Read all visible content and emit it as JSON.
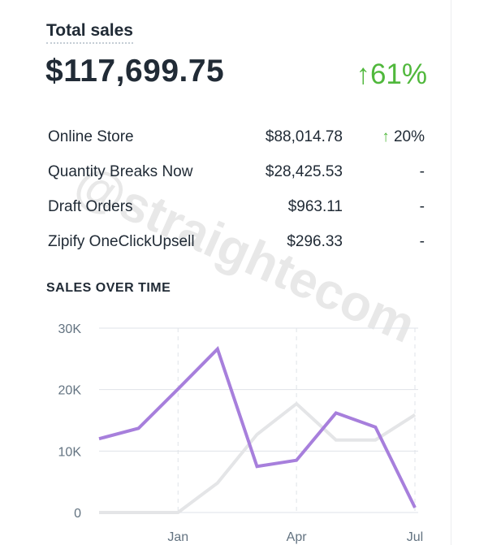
{
  "header": {
    "title": "Total sales",
    "total": "$117,699.75",
    "change": "↑61%"
  },
  "table": {
    "rows": [
      [
        "Online Store",
        "$88,014.78",
        "↑ 20%"
      ],
      [
        "Quantity Breaks Now",
        "$28,425.53",
        "-"
      ],
      [
        "Draft Orders",
        "$963.11",
        "-"
      ],
      [
        "Zipify OneClickUpsell",
        "$296.33",
        "-"
      ]
    ]
  },
  "watermark": "@straightecom",
  "chart_data": {
    "type": "line",
    "title": "SALES OVER TIME",
    "categories": [
      null,
      null,
      "Jan",
      null,
      null,
      "Apr",
      null,
      null,
      "Jul"
    ],
    "series": [
      {
        "color": "#e4e5e7",
        "values": [
          0,
          0,
          0,
          4800,
          12700,
          17700,
          11800,
          11800,
          15900
        ]
      },
      {
        "color": "#a77fdc",
        "values": [
          12000,
          13700,
          20100,
          26600,
          7500,
          8500,
          16200,
          13900,
          800
        ]
      }
    ],
    "ylim": [
      0,
      30000
    ],
    "yticks": [
      0,
      {
        "value": 10000,
        "label": "10K"
      },
      {
        "value": 20000,
        "label": "20K"
      },
      {
        "value": 30000,
        "label": "30K"
      }
    ],
    "grid": true
  }
}
